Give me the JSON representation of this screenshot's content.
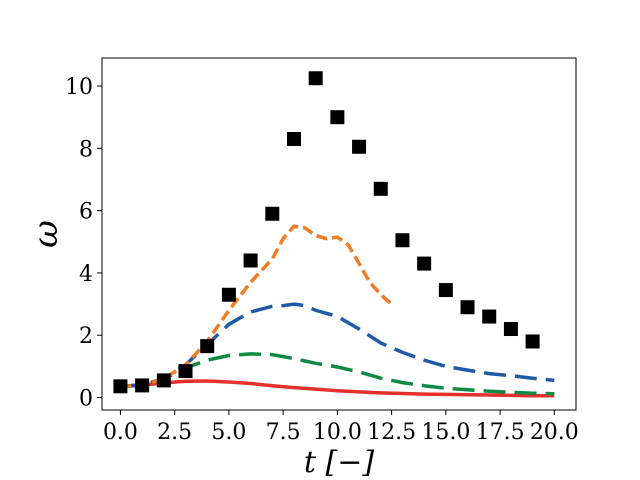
{
  "chart_data": {
    "type": "line",
    "title": "",
    "xlabel": "t [−]",
    "ylabel": "ω",
    "xlim": [
      -0.85,
      21.0
    ],
    "ylim": [
      -0.4,
      10.9
    ],
    "x_ticks": [
      0.0,
      2.5,
      5.0,
      7.5,
      10.0,
      12.5,
      15.0,
      17.5,
      20.0
    ],
    "x_tick_labels": [
      "0.0",
      "2.5",
      "5.0",
      "7.5",
      "10.0",
      "12.5",
      "15.0",
      "17.5",
      "20.0"
    ],
    "y_ticks": [
      0,
      2,
      4,
      6,
      8,
      10
    ],
    "y_tick_labels": [
      "0",
      "2",
      "4",
      "6",
      "8",
      "10"
    ],
    "grid": false,
    "legend": "none",
    "series": [
      {
        "kind": "scatter",
        "marker": "square",
        "color": "#000000",
        "x": [
          0,
          1,
          2,
          3,
          4,
          5,
          6,
          7,
          8,
          9,
          10,
          11,
          12,
          13,
          14,
          15,
          16,
          17,
          18,
          19
        ],
        "y": [
          0.36,
          0.39,
          0.55,
          0.85,
          1.65,
          3.3,
          4.4,
          5.9,
          8.3,
          10.25,
          9.0,
          8.05,
          6.7,
          5.05,
          4.3,
          3.45,
          2.9,
          2.6,
          2.2,
          1.8
        ]
      },
      {
        "kind": "line",
        "style": "dashed",
        "color": "#ef7d25",
        "x": [
          0,
          1,
          2,
          3,
          4,
          5,
          6,
          7,
          7.5,
          8,
          8.5,
          9,
          9.5,
          10,
          10.5,
          11,
          11.5,
          12,
          12.5
        ],
        "y": [
          0.35,
          0.4,
          0.6,
          1.05,
          1.8,
          2.8,
          3.7,
          4.45,
          5.1,
          5.5,
          5.45,
          5.2,
          5.1,
          5.15,
          4.9,
          4.3,
          3.7,
          3.3,
          3.0
        ]
      },
      {
        "kind": "line",
        "style": "long-dash",
        "color": "#1f5aa6",
        "x": [
          0,
          1,
          2,
          3,
          4,
          5,
          6,
          7,
          7.5,
          8,
          8.5,
          9,
          10,
          11,
          12,
          13,
          14,
          15,
          16,
          17,
          18,
          19,
          20
        ],
        "y": [
          0.35,
          0.4,
          0.6,
          1.05,
          1.7,
          2.35,
          2.75,
          2.93,
          2.95,
          3.0,
          2.95,
          2.8,
          2.6,
          2.2,
          1.75,
          1.45,
          1.2,
          1.0,
          0.88,
          0.77,
          0.7,
          0.62,
          0.55
        ]
      },
      {
        "kind": "line",
        "style": "long-dash",
        "color": "#0f8a44",
        "x": [
          0,
          1,
          2,
          3,
          4,
          5,
          6,
          7,
          8,
          9,
          10,
          11,
          12,
          13,
          14,
          15,
          16,
          17,
          18,
          19,
          20
        ],
        "y": [
          0.35,
          0.42,
          0.6,
          0.95,
          1.2,
          1.35,
          1.4,
          1.38,
          1.25,
          1.1,
          0.98,
          0.82,
          0.62,
          0.48,
          0.38,
          0.3,
          0.25,
          0.2,
          0.17,
          0.14,
          0.12
        ]
      },
      {
        "kind": "line",
        "style": "solid",
        "color": "#e5302c",
        "x": [
          0,
          1,
          2,
          3,
          4,
          5,
          6,
          7,
          8,
          9,
          10,
          11,
          12,
          13,
          14,
          15,
          16,
          17,
          18,
          19,
          20
        ],
        "y": [
          0.35,
          0.4,
          0.47,
          0.52,
          0.53,
          0.5,
          0.45,
          0.38,
          0.32,
          0.27,
          0.22,
          0.18,
          0.15,
          0.13,
          0.11,
          0.1,
          0.09,
          0.08,
          0.07,
          0.06,
          0.06
        ]
      }
    ]
  }
}
